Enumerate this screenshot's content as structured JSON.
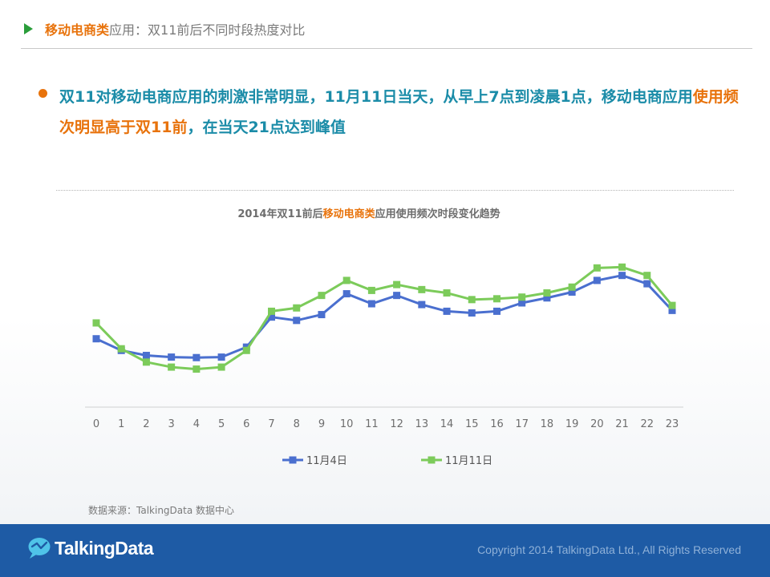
{
  "header": {
    "title_highlight": "移动电商类",
    "title_rest": "应用：双11前后不同时段热度对比"
  },
  "bullet": {
    "part1": "双11对移动电商应用的刺激非常明显，11月11日当天，从早上7点到凌晨1点，移动电商应用",
    "highlight": "使用频次明显高于双11前",
    "part2": "，在当天21点达到峰值"
  },
  "chart_title": {
    "pre": "2014年双11前后",
    "highlight": "移动电商类",
    "post": "应用使用频次时段变化趋势"
  },
  "source": "数据来源：TalkingData 数据中心",
  "footer": {
    "logo_text": "TalkingData",
    "copyright": "Copyright 2014 TalkingData Ltd., All Rights Reserved"
  },
  "colors": {
    "accent_orange": "#e8730c",
    "teal_text": "#1b8ca8",
    "series_blue": "#4a6fcf",
    "series_green": "#7ccb5a",
    "footer_blue": "#1e5ba5"
  },
  "chart_data": {
    "type": "line",
    "x": [
      0,
      1,
      2,
      3,
      4,
      5,
      6,
      7,
      8,
      9,
      10,
      11,
      12,
      13,
      14,
      15,
      16,
      17,
      18,
      19,
      20,
      21,
      22,
      23
    ],
    "ylim": [
      0,
      100
    ],
    "grid": false,
    "legend": "bottom",
    "series": [
      {
        "name": "11月4日",
        "color": "#4a6fcf",
        "values": [
          41,
          34,
          31,
          30,
          29.7,
          30,
          36,
          54,
          52,
          55.5,
          68,
          62,
          67,
          61.5,
          57.5,
          56.5,
          57.5,
          62.5,
          65.5,
          69,
          76,
          79,
          74,
          58
        ]
      },
      {
        "name": "11月11日",
        "color": "#7ccb5a",
        "values": [
          50.5,
          35,
          27,
          24,
          22.8,
          24,
          34,
          57.5,
          59.5,
          67,
          76,
          70,
          73.5,
          70.5,
          68.5,
          64.5,
          65,
          66,
          68.5,
          72,
          83.5,
          84,
          79,
          61
        ]
      }
    ]
  }
}
